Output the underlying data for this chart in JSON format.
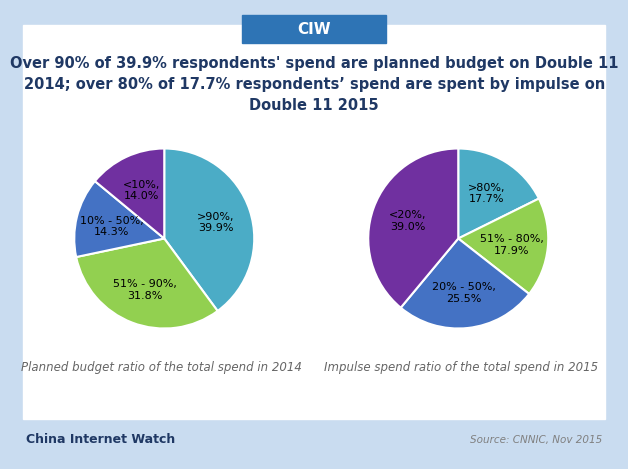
{
  "title": "Over 90% of 39.9% respondents' spend are planned budget on Double 11\n2014; over 80% of 17.7% respondents’ spend are spent by impulse on\nDouble 11 2015",
  "header_label": "CIW",
  "footer_left": "China Internet Watch",
  "footer_right": "Source: CNNIC, Nov 2015",
  "pie1_values": [
    39.9,
    31.8,
    14.3,
    14.0
  ],
  "pie1_labels": [
    ">90%,\n39.9%",
    "51% - 90%,\n31.8%",
    "10% - 50%,\n14.3%",
    "<10%,\n14.0%"
  ],
  "pie1_colors": [
    "#4BACC6",
    "#92D050",
    "#4472C4",
    "#7030A0"
  ],
  "pie1_subtitle": "Planned budget ratio of the total spend in 2014",
  "pie1_startangle": 90,
  "pie2_values": [
    17.7,
    17.9,
    25.5,
    39.0
  ],
  "pie2_labels": [
    ">80%,\n17.7%",
    "51% - 80%,\n17.9%",
    "20% - 50%,\n25.5%",
    "<20%,\n39.0%"
  ],
  "pie2_colors": [
    "#4BACC6",
    "#92D050",
    "#4472C4",
    "#7030A0"
  ],
  "pie2_subtitle": "Impulse spend ratio of the total spend in 2015",
  "pie2_startangle": 90,
  "bg_color": "#C9DCF0",
  "white_bg": "#FFFFFF",
  "title_color": "#1F3864",
  "title_fontsize": 10.5,
  "subtitle_fontsize": 8.5,
  "label_fontsize": 8,
  "footer_left_color": "#1F3864",
  "footer_right_color": "#808080",
  "header_bg": "#2E74B5",
  "header_fontsize": 11
}
